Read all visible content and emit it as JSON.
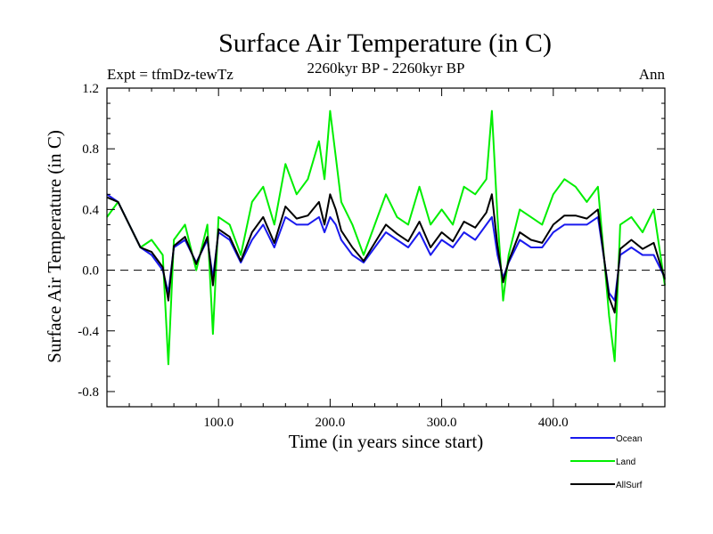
{
  "chart_data": {
    "type": "line",
    "title": "Surface Air Temperature (in C)",
    "subtitle_left": "Expt = tfmDz-tewTz",
    "subtitle_center": "2260kyr BP - 2260kyr BP",
    "subtitle_right": "Ann",
    "xlabel": "Time (in years since start)",
    "ylabel": "Surface Air Temperature (in C)",
    "xlim": [
      0,
      500
    ],
    "ylim": [
      -0.9,
      1.2
    ],
    "xticks": [
      {
        "value": 100,
        "label": "100.0"
      },
      {
        "value": 200,
        "label": "200.0"
      },
      {
        "value": 300,
        "label": "300.0"
      },
      {
        "value": 400,
        "label": "400.0"
      }
    ],
    "yticks": [
      {
        "value": 1.2,
        "label": "1.2"
      },
      {
        "value": 0.8,
        "label": "0.8"
      },
      {
        "value": 0.4,
        "label": "0.4"
      },
      {
        "value": 0.0,
        "label": "0.0"
      },
      {
        "value": -0.4,
        "label": "-0.4"
      },
      {
        "value": -0.8,
        "label": "-0.8"
      }
    ],
    "reference_line": {
      "value": 0.0,
      "style": "dashed"
    },
    "legend_position": "bottom-right",
    "series": [
      {
        "name": "Land",
        "color": "#00ee00",
        "x": [
          0,
          10,
          20,
          30,
          40,
          50,
          55,
          60,
          70,
          80,
          90,
          95,
          100,
          110,
          120,
          130,
          140,
          150,
          160,
          170,
          180,
          190,
          195,
          200,
          205,
          210,
          220,
          230,
          240,
          250,
          260,
          270,
          280,
          290,
          300,
          310,
          320,
          330,
          340,
          345,
          350,
          355,
          360,
          370,
          380,
          390,
          400,
          410,
          420,
          430,
          440,
          450,
          455,
          460,
          470,
          480,
          490,
          500
        ],
        "values": [
          0.35,
          0.45,
          0.3,
          0.15,
          0.2,
          0.1,
          -0.62,
          0.2,
          0.3,
          0.0,
          0.3,
          -0.42,
          0.35,
          0.3,
          0.1,
          0.45,
          0.55,
          0.3,
          0.7,
          0.5,
          0.6,
          0.85,
          0.6,
          1.05,
          0.75,
          0.45,
          0.3,
          0.1,
          0.3,
          0.5,
          0.35,
          0.3,
          0.55,
          0.3,
          0.4,
          0.3,
          0.55,
          0.5,
          0.6,
          1.05,
          0.35,
          -0.2,
          0.1,
          0.4,
          0.35,
          0.3,
          0.5,
          0.6,
          0.55,
          0.45,
          0.55,
          -0.3,
          -0.6,
          0.3,
          0.35,
          0.25,
          0.4,
          -0.1
        ]
      },
      {
        "name": "Ocean",
        "color": "#1a1aee",
        "x": [
          0,
          10,
          20,
          30,
          40,
          50,
          55,
          60,
          70,
          80,
          90,
          95,
          100,
          110,
          120,
          130,
          140,
          150,
          160,
          170,
          180,
          190,
          195,
          200,
          205,
          210,
          220,
          230,
          240,
          250,
          260,
          270,
          280,
          290,
          300,
          310,
          320,
          330,
          340,
          345,
          350,
          355,
          360,
          370,
          380,
          390,
          400,
          410,
          420,
          430,
          440,
          450,
          455,
          460,
          470,
          480,
          490,
          500
        ],
        "values": [
          0.5,
          0.45,
          0.3,
          0.15,
          0.1,
          0.0,
          -0.15,
          0.15,
          0.2,
          0.05,
          0.2,
          -0.05,
          0.25,
          0.2,
          0.05,
          0.2,
          0.3,
          0.15,
          0.35,
          0.3,
          0.3,
          0.35,
          0.25,
          0.35,
          0.3,
          0.2,
          0.1,
          0.05,
          0.15,
          0.25,
          0.2,
          0.15,
          0.25,
          0.1,
          0.2,
          0.15,
          0.25,
          0.2,
          0.3,
          0.35,
          0.1,
          -0.05,
          0.05,
          0.2,
          0.15,
          0.15,
          0.25,
          0.3,
          0.3,
          0.3,
          0.35,
          -0.15,
          -0.2,
          0.1,
          0.15,
          0.1,
          0.1,
          -0.05
        ]
      },
      {
        "name": "AllSurf",
        "color": "#000000",
        "x": [
          0,
          10,
          20,
          30,
          40,
          50,
          55,
          60,
          70,
          80,
          90,
          95,
          100,
          110,
          120,
          130,
          140,
          150,
          160,
          170,
          180,
          190,
          195,
          200,
          205,
          210,
          220,
          230,
          240,
          250,
          260,
          270,
          280,
          290,
          300,
          310,
          320,
          330,
          340,
          345,
          350,
          355,
          360,
          370,
          380,
          390,
          400,
          410,
          420,
          430,
          440,
          450,
          455,
          460,
          470,
          480,
          490,
          500
        ],
        "values": [
          0.48,
          0.45,
          0.3,
          0.15,
          0.12,
          0.02,
          -0.2,
          0.16,
          0.22,
          0.04,
          0.22,
          -0.1,
          0.27,
          0.22,
          0.06,
          0.25,
          0.35,
          0.18,
          0.42,
          0.34,
          0.36,
          0.45,
          0.3,
          0.5,
          0.4,
          0.26,
          0.15,
          0.06,
          0.18,
          0.3,
          0.24,
          0.19,
          0.32,
          0.15,
          0.25,
          0.19,
          0.32,
          0.28,
          0.38,
          0.5,
          0.16,
          -0.08,
          0.06,
          0.25,
          0.2,
          0.18,
          0.3,
          0.36,
          0.36,
          0.34,
          0.4,
          -0.18,
          -0.28,
          0.14,
          0.2,
          0.14,
          0.18,
          -0.06
        ]
      }
    ]
  }
}
